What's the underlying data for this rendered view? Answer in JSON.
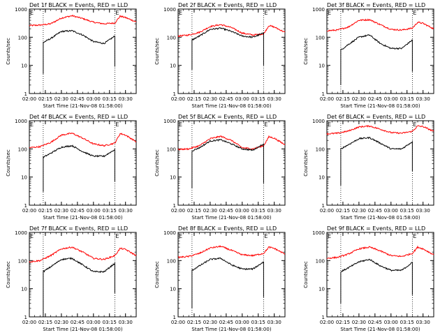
{
  "chart_data": [
    {
      "type": "line",
      "title": "Det 1f  BLACK = Events, RED = LLD",
      "ylabel": "Counts/sec",
      "xlabel": "Start Time (21-Nov-08 01:58:00)",
      "ylog": true,
      "ylim": [
        1,
        1000
      ],
      "xlim": [
        "02:00",
        "03:40"
      ],
      "xticks": [
        "02:00",
        "02:15",
        "02:30",
        "02:45",
        "03:00",
        "03:15",
        "03:30"
      ],
      "yticks": [
        "1",
        "10",
        "100",
        "1000"
      ],
      "vlines": [
        "02:13",
        "03:20"
      ],
      "markers": [
        {
          "label": "E",
          "time": "02:00"
        },
        {
          "label": "E",
          "time": "03:20"
        }
      ],
      "series": [
        {
          "color": "#ff0000",
          "x": [
            "02:00",
            "02:10",
            "02:20",
            "02:30",
            "02:40",
            "02:50",
            "03:00",
            "03:10",
            "03:20",
            "03:25",
            "03:30",
            "03:40"
          ],
          "y": [
            260,
            270,
            300,
            480,
            580,
            460,
            340,
            300,
            320,
            560,
            500,
            350
          ]
        },
        {
          "color": "#000000",
          "x": [
            "02:13",
            "02:13",
            "02:20",
            "02:30",
            "02:40",
            "02:50",
            "03:00",
            "03:10",
            "03:20",
            "03:20"
          ],
          "y": [
            5,
            65,
            90,
            160,
            170,
            120,
            70,
            60,
            110,
            9
          ]
        }
      ]
    },
    {
      "type": "line",
      "title": "Det 2f  BLACK = Events, RED = LLD",
      "ylabel": "Counts/sec",
      "xlabel": "Start Time (21-Nov-08 01:58:00)",
      "ylog": true,
      "ylim": [
        1,
        1000
      ],
      "xlim": [
        "02:00",
        "03:40"
      ],
      "xticks": [
        "02:00",
        "02:15",
        "02:30",
        "02:45",
        "03:00",
        "03:15",
        "03:30"
      ],
      "yticks": [
        "1",
        "10",
        "100",
        "1000"
      ],
      "vlines": [
        "02:13",
        "03:20"
      ],
      "markers": [
        {
          "label": "E",
          "time": "02:00"
        },
        {
          "label": "E",
          "time": "03:20"
        }
      ],
      "series": [
        {
          "color": "#ff0000",
          "x": [
            "02:00",
            "02:10",
            "02:20",
            "02:30",
            "02:40",
            "02:50",
            "03:00",
            "03:10",
            "03:20",
            "03:25",
            "03:30",
            "03:40"
          ],
          "y": [
            110,
            120,
            150,
            240,
            280,
            220,
            140,
            120,
            130,
            260,
            230,
            150
          ]
        },
        {
          "color": "#000000",
          "x": [
            "02:13",
            "02:13",
            "02:20",
            "02:30",
            "02:40",
            "02:50",
            "03:00",
            "03:10",
            "03:20",
            "03:20"
          ],
          "y": [
            7,
            80,
            110,
            190,
            210,
            160,
            110,
            100,
            140,
            10
          ]
        }
      ]
    },
    {
      "type": "line",
      "title": "Det 3f  BLACK = Events, RED = LLD",
      "ylabel": "Counts/sec",
      "xlabel": "Start Time (21-Nov-08 01:58:00)",
      "ylog": true,
      "ylim": [
        1,
        1000
      ],
      "xlim": [
        "02:00",
        "03:40"
      ],
      "xticks": [
        "02:00",
        "02:15",
        "02:30",
        "02:45",
        "03:00",
        "03:15",
        "03:30"
      ],
      "yticks": [
        "1",
        "10",
        "100",
        "1000"
      ],
      "vlines": [
        "02:13",
        "03:20"
      ],
      "markers": [
        {
          "label": "E",
          "time": "02:00"
        },
        {
          "label": "E",
          "time": "03:20"
        }
      ],
      "series": [
        {
          "color": "#ff0000",
          "x": [
            "02:00",
            "02:10",
            "02:20",
            "02:30",
            "02:40",
            "02:50",
            "03:00",
            "03:10",
            "03:20",
            "03:25",
            "03:30",
            "03:40"
          ],
          "y": [
            170,
            180,
            230,
            400,
            420,
            280,
            190,
            180,
            210,
            340,
            310,
            200
          ]
        },
        {
          "color": "#000000",
          "x": [
            "02:13",
            "02:13",
            "02:20",
            "02:30",
            "02:40",
            "02:50",
            "03:00",
            "03:10",
            "03:20",
            "03:20"
          ],
          "y": [
            2,
            35,
            55,
            100,
            120,
            60,
            40,
            40,
            80,
            6
          ]
        }
      ]
    },
    {
      "type": "line",
      "title": "Det 4f  BLACK = Events, RED = LLD",
      "ylabel": "Counts/sec",
      "xlabel": "Start Time (21-Nov-08 01:58:00)",
      "ylog": true,
      "ylim": [
        1,
        1000
      ],
      "xlim": [
        "02:00",
        "03:40"
      ],
      "xticks": [
        "02:00",
        "02:15",
        "02:30",
        "02:45",
        "03:00",
        "03:15",
        "03:30"
      ],
      "yticks": [
        "1",
        "10",
        "100",
        "1000"
      ],
      "vlines": [
        "02:13",
        "03:20"
      ],
      "markers": [
        {
          "label": "E",
          "time": "02:00"
        },
        {
          "label": "E",
          "time": "03:20"
        }
      ],
      "series": [
        {
          "color": "#ff0000",
          "x": [
            "02:00",
            "02:10",
            "02:20",
            "02:30",
            "02:40",
            "02:50",
            "03:00",
            "03:10",
            "03:20",
            "03:25",
            "03:30",
            "03:40"
          ],
          "y": [
            110,
            120,
            170,
            310,
            360,
            240,
            150,
            130,
            160,
            350,
            310,
            180
          ]
        },
        {
          "color": "#000000",
          "x": [
            "02:13",
            "02:13",
            "02:20",
            "02:30",
            "02:40",
            "02:50",
            "03:00",
            "03:10",
            "03:20",
            "03:20"
          ],
          "y": [
            3,
            50,
            70,
            115,
            130,
            80,
            55,
            55,
            95,
            7
          ]
        }
      ]
    },
    {
      "type": "line",
      "title": "Det 5f  BLACK = Events, RED = LLD",
      "ylabel": "Counts/sec",
      "xlabel": "Start Time (21-Nov-08 01:58:00)",
      "ylog": true,
      "ylim": [
        1,
        1000
      ],
      "xlim": [
        "02:00",
        "03:40"
      ],
      "xticks": [
        "02:00",
        "02:15",
        "02:30",
        "02:45",
        "03:00",
        "03:15",
        "03:30"
      ],
      "yticks": [
        "1",
        "10",
        "100",
        "1000"
      ],
      "vlines": [
        "02:13",
        "03:20"
      ],
      "markers": [
        {
          "label": "E",
          "time": "02:00"
        },
        {
          "label": "E",
          "time": "03:20"
        }
      ],
      "series": [
        {
          "color": "#ff0000",
          "x": [
            "02:00",
            "02:10",
            "02:20",
            "02:30",
            "02:40",
            "02:50",
            "03:00",
            "03:10",
            "03:20",
            "03:25",
            "03:30",
            "03:40"
          ],
          "y": [
            95,
            100,
            130,
            230,
            280,
            200,
            110,
            100,
            130,
            270,
            240,
            140
          ]
        },
        {
          "color": "#000000",
          "x": [
            "02:13",
            "02:13",
            "02:20",
            "02:30",
            "02:40",
            "02:50",
            "03:00",
            "03:10",
            "03:20",
            "03:20"
          ],
          "y": [
            4,
            85,
            110,
            190,
            210,
            150,
            100,
            90,
            150,
            6
          ]
        }
      ]
    },
    {
      "type": "line",
      "title": "Det 6f  BLACK = Events, RED = LLD",
      "ylabel": "Counts/sec",
      "xlabel": "Start Time (21-Nov-08 01:58:00)",
      "ylog": true,
      "ylim": [
        1,
        1000
      ],
      "xlim": [
        "02:00",
        "03:40"
      ],
      "xticks": [
        "02:00",
        "02:15",
        "02:30",
        "02:45",
        "03:00",
        "03:15",
        "03:30"
      ],
      "yticks": [
        "1",
        "10",
        "100",
        "1000"
      ],
      "vlines": [
        "02:13",
        "03:20"
      ],
      "markers": [
        {
          "label": "E",
          "time": "02:00"
        },
        {
          "label": "E",
          "time": "03:20"
        }
      ],
      "series": [
        {
          "color": "#ff0000",
          "x": [
            "02:00",
            "02:10",
            "02:20",
            "02:30",
            "02:40",
            "02:50",
            "03:00",
            "03:10",
            "03:20",
            "03:25",
            "03:30",
            "03:40"
          ],
          "y": [
            340,
            360,
            430,
            600,
            650,
            500,
            380,
            360,
            420,
            650,
            620,
            420
          ]
        },
        {
          "color": "#000000",
          "x": [
            "02:13",
            "02:13",
            "02:20",
            "02:30",
            "02:40",
            "02:50",
            "03:00",
            "03:10",
            "03:20",
            "03:20"
          ],
          "y": [
            5,
            100,
            140,
            230,
            250,
            160,
            100,
            100,
            180,
            16
          ]
        }
      ]
    },
    {
      "type": "line",
      "title": "Det 7f  BLACK = Events, RED = LLD",
      "ylabel": "Counts/sec",
      "xlabel": "Start Time (21-Nov-08 01:58:00)",
      "ylog": true,
      "ylim": [
        1,
        1000
      ],
      "xlim": [
        "02:00",
        "03:40"
      ],
      "xticks": [
        "02:00",
        "02:15",
        "02:30",
        "02:45",
        "03:00",
        "03:15",
        "03:30"
      ],
      "yticks": [
        "1",
        "10",
        "100",
        "1000"
      ],
      "vlines": [
        "02:13",
        "03:20"
      ],
      "markers": [
        {
          "label": "E",
          "time": "02:00"
        },
        {
          "label": "E",
          "time": "03:20"
        }
      ],
      "series": [
        {
          "color": "#ff0000",
          "x": [
            "02:00",
            "02:10",
            "02:20",
            "02:30",
            "02:40",
            "02:50",
            "03:00",
            "03:10",
            "03:20",
            "03:25",
            "03:30",
            "03:40"
          ],
          "y": [
            90,
            100,
            150,
            260,
            300,
            200,
            120,
            110,
            150,
            270,
            250,
            150
          ]
        },
        {
          "color": "#000000",
          "x": [
            "02:13",
            "02:13",
            "02:20",
            "02:30",
            "02:40",
            "02:50",
            "03:00",
            "03:10",
            "03:20",
            "03:20"
          ],
          "y": [
            1,
            40,
            60,
            110,
            120,
            70,
            40,
            40,
            80,
            7
          ]
        }
      ]
    },
    {
      "type": "line",
      "title": "Det 8f  BLACK = Events, RED = LLD",
      "ylabel": "Counts/sec",
      "xlabel": "Start Time (21-Nov-08 01:58:00)",
      "ylog": true,
      "ylim": [
        1,
        1000
      ],
      "xlim": [
        "02:00",
        "03:40"
      ],
      "xticks": [
        "02:00",
        "02:15",
        "02:30",
        "02:45",
        "03:00",
        "03:15",
        "03:30"
      ],
      "yticks": [
        "1",
        "10",
        "100",
        "1000"
      ],
      "vlines": [
        "02:13",
        "03:20"
      ],
      "markers": [
        {
          "label": "E",
          "time": "02:00"
        },
        {
          "label": "E",
          "time": "03:20"
        }
      ],
      "series": [
        {
          "color": "#ff0000",
          "x": [
            "02:00",
            "02:10",
            "02:20",
            "02:30",
            "02:40",
            "02:50",
            "03:00",
            "03:10",
            "03:20",
            "03:25",
            "03:30",
            "03:40"
          ],
          "y": [
            130,
            140,
            180,
            280,
            320,
            230,
            160,
            150,
            180,
            300,
            270,
            170
          ]
        },
        {
          "color": "#000000",
          "x": [
            "02:13",
            "02:13",
            "02:20",
            "02:30",
            "02:40",
            "02:50",
            "03:00",
            "03:10",
            "03:20",
            "03:20"
          ],
          "y": [
            2,
            45,
            65,
            110,
            120,
            70,
            50,
            50,
            90,
            5
          ]
        }
      ]
    },
    {
      "type": "line",
      "title": "Det 9f  BLACK = Events, RED = LLD",
      "ylabel": "Counts/sec",
      "xlabel": "Start Time (21-Nov-08 01:58:00)",
      "ylog": true,
      "ylim": [
        1,
        1000
      ],
      "xlim": [
        "02:00",
        "03:40"
      ],
      "xticks": [
        "02:00",
        "02:15",
        "02:30",
        "02:45",
        "03:00",
        "03:15",
        "03:30"
      ],
      "yticks": [
        "1",
        "10",
        "100",
        "1000"
      ],
      "vlines": [
        "02:13",
        "03:20"
      ],
      "markers": [
        {
          "label": "E",
          "time": "02:00"
        },
        {
          "label": "E",
          "time": "03:20"
        }
      ],
      "series": [
        {
          "color": "#ff0000",
          "x": [
            "02:00",
            "02:10",
            "02:20",
            "02:30",
            "02:40",
            "02:50",
            "03:00",
            "03:10",
            "03:20",
            "03:25",
            "03:30",
            "03:40"
          ],
          "y": [
            120,
            130,
            170,
            260,
            300,
            220,
            150,
            140,
            180,
            300,
            260,
            160
          ]
        },
        {
          "color": "#000000",
          "x": [
            "02:13",
            "02:13",
            "02:20",
            "02:30",
            "02:40",
            "02:50",
            "03:00",
            "03:10",
            "03:20",
            "03:20"
          ],
          "y": [
            3,
            40,
            55,
            90,
            110,
            65,
            45,
            45,
            85,
            6
          ]
        }
      ]
    }
  ]
}
